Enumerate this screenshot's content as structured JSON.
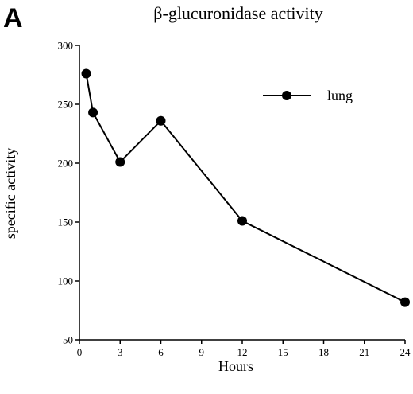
{
  "panel_label": "A",
  "chart_data": {
    "type": "line",
    "title": "β-glucuronidase activity",
    "xlabel": "Hours",
    "ylabel": "specific activity",
    "xlim": [
      0,
      24
    ],
    "ylim": [
      50,
      300
    ],
    "xticks": [
      "0",
      "3",
      "6",
      "9",
      "12",
      "15",
      "18",
      "21",
      "24"
    ],
    "yticks": [
      "50",
      "100",
      "150",
      "200",
      "250",
      "300"
    ],
    "grid": false,
    "legend_position": "top-right",
    "series": [
      {
        "name": "lung",
        "color": "#000000",
        "marker": "filled-circle",
        "x": [
          0.5,
          1,
          3,
          6,
          12,
          24
        ],
        "y": [
          276,
          243,
          201,
          236,
          151,
          82
        ]
      }
    ]
  }
}
